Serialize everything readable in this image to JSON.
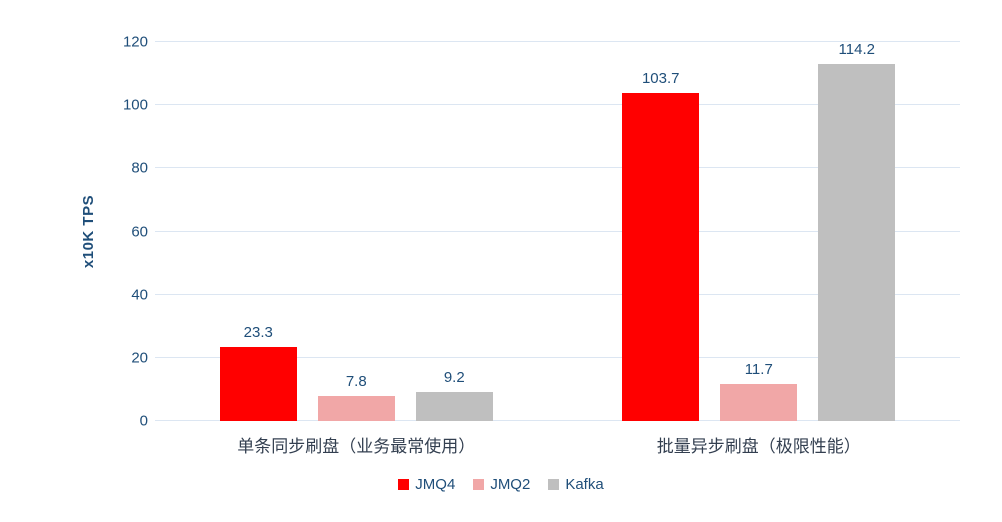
{
  "chart_data": {
    "type": "bar",
    "title": "",
    "ylabel": "x10K TPS",
    "xlabel": "",
    "ylim": [
      0,
      120
    ],
    "ytick_step": 20,
    "grid": true,
    "legend_position": "bottom",
    "categories": [
      "单条同步刷盘（业务最常使用）",
      "批量异步刷盘（极限性能）"
    ],
    "series": [
      {
        "name": "JMQ4",
        "color": "#ff0000",
        "values": [
          23.3,
          103.7
        ]
      },
      {
        "name": "JMQ2",
        "color": "#f1a7a7",
        "values": [
          7.8,
          11.7
        ]
      },
      {
        "name": "Kafka",
        "color": "#bfbfbf",
        "values": [
          9.2,
          114.2
        ]
      }
    ]
  },
  "colors": {
    "axis_text": "#1f4e79",
    "category_text": "#333f50",
    "gridline": "#dce6f2",
    "background": "#ffffff"
  }
}
